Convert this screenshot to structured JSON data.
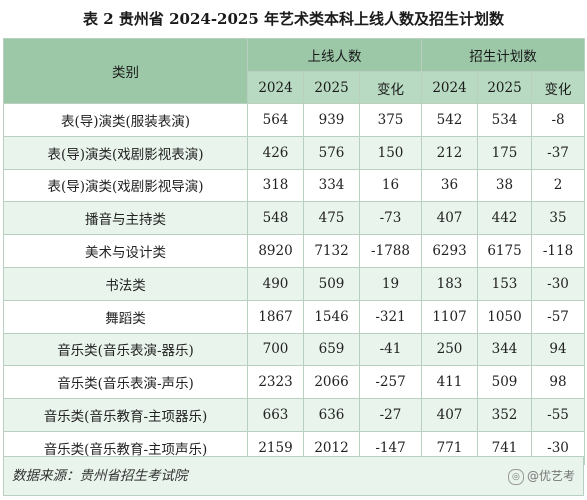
{
  "title": "表 2 贵州省 2024-2025 年艺术类本科上线人数及招生计划数",
  "header": {
    "category": "类别",
    "group_online": "上线人数",
    "group_plan": "招生计划数",
    "col_2024": "2024",
    "col_2025": "2025",
    "col_change": "变化"
  },
  "rows": [
    {
      "name": "表(导)演类(服装表演)",
      "on24": "564",
      "on25": "939",
      "onc": "375",
      "pl24": "542",
      "pl25": "534",
      "plc": "-8"
    },
    {
      "name": "表(导)演类(戏剧影视表演)",
      "on24": "426",
      "on25": "576",
      "onc": "150",
      "pl24": "212",
      "pl25": "175",
      "plc": "-37"
    },
    {
      "name": "表(导)演类(戏剧影视导演)",
      "on24": "318",
      "on25": "334",
      "onc": "16",
      "pl24": "36",
      "pl25": "38",
      "plc": "2"
    },
    {
      "name": "播音与主持类",
      "on24": "548",
      "on25": "475",
      "onc": "-73",
      "pl24": "407",
      "pl25": "442",
      "plc": "35"
    },
    {
      "name": "美术与设计类",
      "on24": "8920",
      "on25": "7132",
      "onc": "-1788",
      "pl24": "6293",
      "pl25": "6175",
      "plc": "-118"
    },
    {
      "name": "书法类",
      "on24": "490",
      "on25": "509",
      "onc": "19",
      "pl24": "183",
      "pl25": "153",
      "plc": "-30"
    },
    {
      "name": "舞蹈类",
      "on24": "1867",
      "on25": "1546",
      "onc": "-321",
      "pl24": "1107",
      "pl25": "1050",
      "plc": "-57"
    },
    {
      "name": "音乐类(音乐表演-器乐)",
      "on24": "700",
      "on25": "659",
      "onc": "-41",
      "pl24": "250",
      "pl25": "344",
      "plc": "94"
    },
    {
      "name": "音乐类(音乐表演-声乐)",
      "on24": "2323",
      "on25": "2066",
      "onc": "-257",
      "pl24": "411",
      "pl25": "509",
      "plc": "98"
    },
    {
      "name": "音乐类(音乐教育-主项器乐)",
      "on24": "663",
      "on25": "636",
      "onc": "-27",
      "pl24": "407",
      "pl25": "352",
      "plc": "-55"
    },
    {
      "name": "音乐类(音乐教育-主项声乐)",
      "on24": "2159",
      "on25": "2012",
      "onc": "-147",
      "pl24": "771",
      "pl25": "741",
      "plc": "-30"
    }
  ],
  "footer": {
    "source": "数据来源：贵州省招生考试院",
    "watermark_text": "@优艺考"
  },
  "colors": {
    "header_bg": "#9cc8a8",
    "subheader_bg": "#b9dac2",
    "stripe_bg": "#e9f4ec",
    "border": "#b9cfbf"
  }
}
